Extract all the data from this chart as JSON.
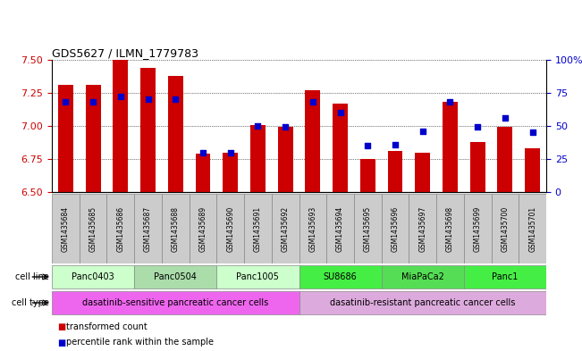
{
  "title": "GDS5627 / ILMN_1779783",
  "samples": [
    "GSM1435684",
    "GSM1435685",
    "GSM1435686",
    "GSM1435687",
    "GSM1435688",
    "GSM1435689",
    "GSM1435690",
    "GSM1435691",
    "GSM1435692",
    "GSM1435693",
    "GSM1435694",
    "GSM1435695",
    "GSM1435696",
    "GSM1435697",
    "GSM1435698",
    "GSM1435699",
    "GSM1435700",
    "GSM1435701"
  ],
  "bar_values": [
    7.31,
    7.31,
    7.5,
    7.44,
    7.38,
    6.79,
    6.8,
    7.01,
    6.99,
    7.27,
    7.17,
    6.75,
    6.81,
    6.8,
    7.18,
    6.88,
    6.99,
    6.83
  ],
  "percentile_values": [
    68,
    68,
    72,
    70,
    70,
    30,
    30,
    50,
    49,
    68,
    60,
    35,
    36,
    46,
    68,
    49,
    56,
    45
  ],
  "ylim": [
    6.5,
    7.5
  ],
  "yticks": [
    6.5,
    6.75,
    7.0,
    7.25,
    7.5
  ],
  "right_yticks": [
    0,
    25,
    50,
    75,
    100
  ],
  "bar_color": "#cc0000",
  "dot_color": "#0000cc",
  "bar_width": 0.55,
  "cell_lines": [
    {
      "label": "Panc0403",
      "start": 0,
      "end": 3,
      "color": "#ccffcc"
    },
    {
      "label": "Panc0504",
      "start": 3,
      "end": 6,
      "color": "#aaddaa"
    },
    {
      "label": "Panc1005",
      "start": 6,
      "end": 9,
      "color": "#ccffcc"
    },
    {
      "label": "SU8686",
      "start": 9,
      "end": 12,
      "color": "#44ee44"
    },
    {
      "label": "MiaPaCa2",
      "start": 12,
      "end": 15,
      "color": "#55dd55"
    },
    {
      "label": "Panc1",
      "start": 15,
      "end": 18,
      "color": "#44ee44"
    }
  ],
  "cell_types": [
    {
      "label": "dasatinib-sensitive pancreatic cancer cells",
      "start": 0,
      "end": 9,
      "color": "#ee66ee"
    },
    {
      "label": "dasatinib-resistant pancreatic cancer cells",
      "start": 9,
      "end": 18,
      "color": "#ddaadd"
    }
  ],
  "legend_items": [
    {
      "label": "transformed count",
      "color": "#cc0000"
    },
    {
      "label": "percentile rank within the sample",
      "color": "#0000cc"
    }
  ],
  "grid_color": "#000000",
  "tick_color_left": "#cc0000",
  "tick_color_right": "#0000cc",
  "sample_box_color": "#cccccc",
  "sample_box_edge": "#888888"
}
